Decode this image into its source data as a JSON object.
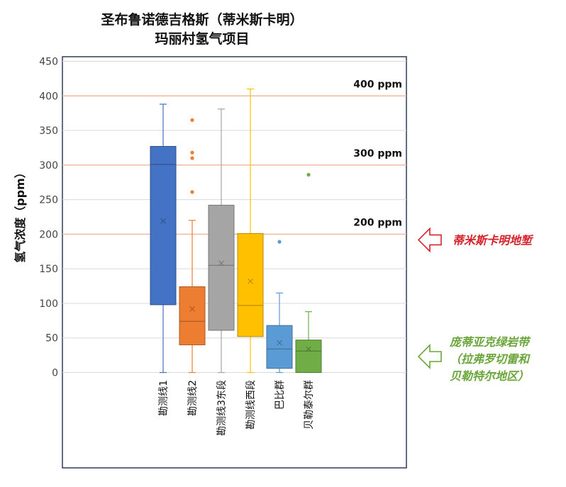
{
  "chart_data": {
    "type": "box",
    "title": [
      "圣布鲁诺德吉格斯（蒂米斯卡明）",
      "玛丽村氢气项目"
    ],
    "ylabel": "氢气浓度（ppm）",
    "ylim": [
      0,
      450
    ],
    "yticks": [
      0,
      50,
      100,
      150,
      200,
      250,
      300,
      350,
      400,
      450
    ],
    "grid": true,
    "categories": [
      "勘测线1",
      "勘测线2",
      "勘测线3东段",
      "勘测线西段",
      "巴比群",
      "贝勒泰尔群"
    ],
    "series": [
      {
        "category": "勘测线1",
        "color": "#4472c4",
        "min": 0,
        "q1": 98,
        "median": 301,
        "q3": 327,
        "max": 388,
        "mean": 219,
        "outliers": []
      },
      {
        "category": "勘测线2",
        "color": "#ed7d31",
        "min": 0,
        "q1": 40,
        "median": 74,
        "q3": 124,
        "max": 220,
        "mean": 92,
        "outliers": [
          365,
          318,
          310,
          261
        ]
      },
      {
        "category": "勘测线3东段",
        "color": "#a5a5a5",
        "min": 0,
        "q1": 61,
        "median": 155,
        "q3": 242,
        "max": 381,
        "mean": 158,
        "outliers": []
      },
      {
        "category": "勘测线西段",
        "color": "#ffc000",
        "min": 0,
        "q1": 52,
        "median": 97,
        "q3": 201,
        "max": 410,
        "mean": 132,
        "outliers": []
      },
      {
        "category": "巴比群",
        "color": "#5b9bd5",
        "min": 0,
        "q1": 6,
        "median": 34,
        "q3": 68,
        "max": 115,
        "mean": 43,
        "outliers": [
          189
        ]
      },
      {
        "category": "贝勒泰尔群",
        "color": "#70ad47",
        "min": 0,
        "q1": 0,
        "median": 31,
        "q3": 47,
        "max": 88,
        "mean": 34,
        "outliers": [
          286
        ]
      }
    ],
    "reference_lines": [
      {
        "value": 400,
        "label": "400 ppm"
      },
      {
        "value": 300,
        "label": "300 ppm"
      },
      {
        "value": 200,
        "label": "200 ppm"
      }
    ],
    "annotations": {
      "red": {
        "lines": [
          "蒂米斯卡明地堑"
        ],
        "color": "#d6222a",
        "target_value": 200
      },
      "green": {
        "lines": [
          "庞蒂亚克绿岩带",
          "（拉弗罗切雷和",
          "贝勒特尔地区）"
        ],
        "color": "#6aa53a",
        "target_value": 20
      }
    }
  }
}
